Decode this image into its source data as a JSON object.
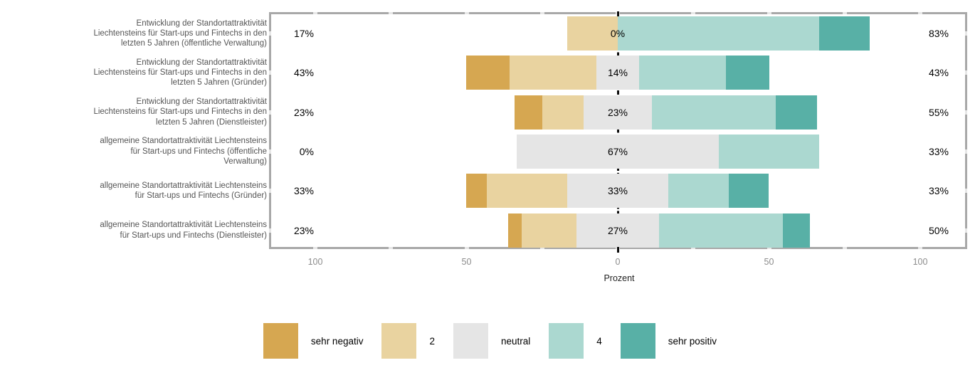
{
  "chart_data": {
    "type": "bar",
    "variant": "diverging-stacked-likert",
    "title": "",
    "xlabel": "Prozent",
    "x_ticks": [
      {
        "label": "100",
        "value": -100
      },
      {
        "label": "50",
        "value": -50
      },
      {
        "label": "0",
        "value": 0
      },
      {
        "label": "50",
        "value": 50
      },
      {
        "label": "100",
        "value": 100
      }
    ],
    "axis_range_percent": [
      -100,
      100
    ],
    "grid": "off",
    "legend_position": "bottom",
    "legend": [
      {
        "label": "sehr negativ",
        "color": "#d6a751"
      },
      {
        "label": "2",
        "color": "#e9d3a0"
      },
      {
        "label": "neutral",
        "color": "#e5e5e5"
      },
      {
        "label": "4",
        "color": "#abd8d0"
      },
      {
        "label": "sehr positiv",
        "color": "#58b0a6"
      }
    ],
    "rows": [
      {
        "label_lines": [
          "Entwicklung der Standortattraktivität",
          "Liechtensteins für Start-ups und Fintechs in den",
          "letzten 5 Jahren (öffentliche Verwaltung)"
        ],
        "values": [
          0,
          16.7,
          0,
          66.7,
          16.7
        ],
        "negative_total": "17%",
        "neutral_total": "0%",
        "positive_total": "83%"
      },
      {
        "label_lines": [
          "Entwicklung der Standortattraktivität",
          "Liechtensteins für Start-ups und Fintechs in den",
          "letzten 5 Jahren (Gründer)"
        ],
        "values": [
          14.3,
          28.6,
          14.3,
          28.6,
          14.3
        ],
        "negative_total": "43%",
        "neutral_total": "14%",
        "positive_total": "43%"
      },
      {
        "label_lines": [
          "Entwicklung der Standortattraktivität",
          "Liechtensteins für Start-ups und Fintechs in den",
          "letzten 5 Jahren (Dienstleister)"
        ],
        "values": [
          9.1,
          13.6,
          22.7,
          40.9,
          13.6
        ],
        "negative_total": "23%",
        "neutral_total": "23%",
        "positive_total": "55%"
      },
      {
        "label_lines": [
          "allgemeine Standortattraktivität Liechtensteins",
          "für Start-ups und Fintechs (öffentliche",
          "Verwaltung)"
        ],
        "values": [
          0,
          0,
          66.7,
          33.3,
          0
        ],
        "negative_total": "0%",
        "neutral_total": "67%",
        "positive_total": "33%"
      },
      {
        "label_lines": [
          "allgemeine Standortattraktivität Liechtensteins",
          "für Start-ups und Fintechs (Gründer)"
        ],
        "values": [
          6.7,
          26.7,
          33.3,
          20,
          13.3
        ],
        "negative_total": "33%",
        "neutral_total": "33%",
        "positive_total": "33%"
      },
      {
        "label_lines": [
          "allgemeine Standortattraktivität Liechtensteins",
          "für Start-ups und Fintechs (Dienstleister)"
        ],
        "values": [
          4.5,
          18.2,
          27.3,
          40.9,
          9.1
        ],
        "negative_total": "23%",
        "neutral_total": "27%",
        "positive_total": "50%"
      }
    ]
  }
}
